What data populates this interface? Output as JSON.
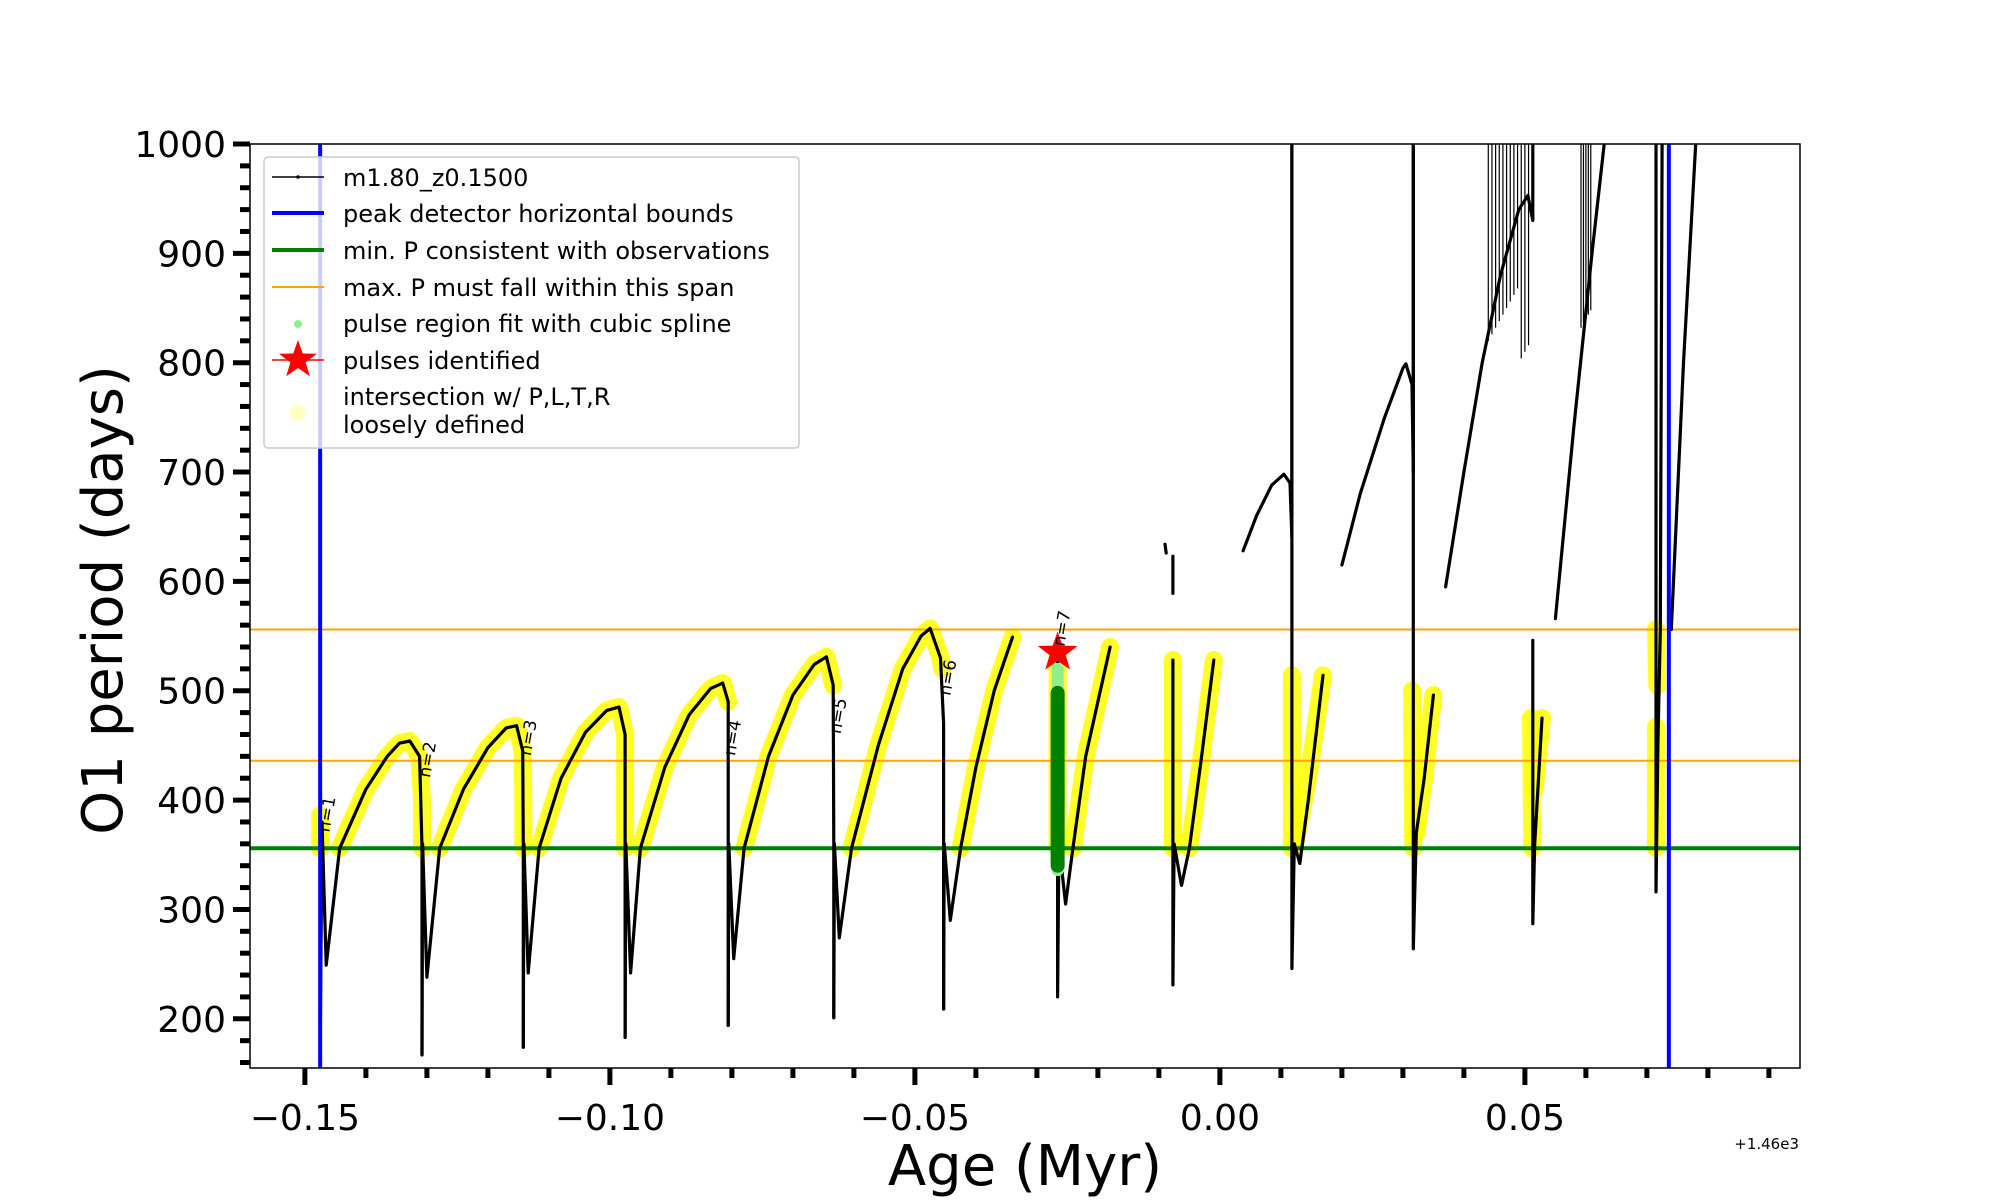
{
  "chart_data": {
    "type": "line",
    "xlabel": "Age (Myr)",
    "ylabel": "O1 period (days)",
    "x_offset_label": "+1.46e3",
    "xlim": [
      -0.159,
      0.0951
    ],
    "ylim": [
      155,
      1000
    ],
    "xticks": [
      -0.15,
      -0.1,
      -0.05,
      0.0,
      0.05
    ],
    "xtick_labels": [
      "−0.15",
      "−0.10",
      "−0.05",
      "0.00",
      "0.05"
    ],
    "x_minor_step": 0.01,
    "yticks": [
      200,
      300,
      400,
      500,
      600,
      700,
      800,
      900,
      1000
    ],
    "ytick_labels": [
      "200",
      "300",
      "400",
      "500",
      "600",
      "700",
      "800",
      "900",
      "1000"
    ],
    "y_minor_step": 20,
    "grid": false,
    "legend_position": "upper-left",
    "colors": {
      "track": "#000000",
      "bounds": "#0000ff",
      "min_p": "#008000",
      "max_p": "#ffa500",
      "spline": "#90ee90",
      "spline_dark": "#008000",
      "pulse_star": "#ff0000",
      "intersection": "#ffff00",
      "intersection_legend": "#ffffc0"
    },
    "legend": [
      {
        "label": "m1.80_z0.1500",
        "kind": "track"
      },
      {
        "label": "peak detector horizontal bounds",
        "kind": "bounds"
      },
      {
        "label": "min. P consistent with observations",
        "kind": "min_p"
      },
      {
        "label": "max. P must fall within this span",
        "kind": "max_p"
      },
      {
        "label": "pulse region fit with cubic spline",
        "kind": "spline"
      },
      {
        "label": "pulses identified",
        "kind": "star"
      },
      {
        "label": "intersection w/ P,L,T,R",
        "label2": "loosely defined",
        "kind": "intersection"
      }
    ],
    "vertical_lines": [
      -0.1475,
      0.0736
    ],
    "min_period_line": 356,
    "max_period_span": [
      436,
      556
    ],
    "track_series": [
      {
        "name": "pulse-1",
        "points": [
          [
            -0.1475,
            1000
          ],
          [
            -0.1475,
            164
          ],
          [
            -0.1472,
            380
          ],
          [
            -0.1465,
            249
          ],
          [
            -0.1443,
            356
          ],
          [
            -0.14,
            410
          ],
          [
            -0.1365,
            440
          ],
          [
            -0.1345,
            452
          ],
          [
            -0.1328,
            454
          ],
          [
            -0.1312,
            440
          ],
          [
            -0.1308,
            356
          ],
          [
            -0.1308,
            167
          ]
        ]
      },
      {
        "name": "pulse-2",
        "points": [
          [
            -0.1308,
            167
          ],
          [
            -0.1307,
            360
          ],
          [
            -0.13,
            238
          ],
          [
            -0.1279,
            356
          ],
          [
            -0.124,
            410
          ],
          [
            -0.12,
            448
          ],
          [
            -0.117,
            466
          ],
          [
            -0.1153,
            468
          ],
          [
            -0.1143,
            445
          ],
          [
            -0.1142,
            356
          ],
          [
            -0.1142,
            174
          ]
        ]
      },
      {
        "name": "pulse-3",
        "points": [
          [
            -0.1142,
            174
          ],
          [
            -0.1141,
            360
          ],
          [
            -0.1134,
            242
          ],
          [
            -0.1116,
            356
          ],
          [
            -0.108,
            420
          ],
          [
            -0.104,
            462
          ],
          [
            -0.1005,
            482
          ],
          [
            -0.0985,
            485
          ],
          [
            -0.0975,
            460
          ],
          [
            -0.0975,
            356
          ],
          [
            -0.0975,
            183
          ]
        ]
      },
      {
        "name": "pulse-4",
        "points": [
          [
            -0.0975,
            183
          ],
          [
            -0.0974,
            360
          ],
          [
            -0.0966,
            242
          ],
          [
            -0.095,
            356
          ],
          [
            -0.091,
            430
          ],
          [
            -0.087,
            478
          ],
          [
            -0.0835,
            502
          ],
          [
            -0.0815,
            507
          ],
          [
            -0.0806,
            490
          ],
          [
            -0.0806,
            356
          ],
          [
            -0.0806,
            194
          ]
        ]
      },
      {
        "name": "pulse-5",
        "points": [
          [
            -0.0806,
            194
          ],
          [
            -0.0805,
            360
          ],
          [
            -0.0797,
            255
          ],
          [
            -0.078,
            356
          ],
          [
            -0.074,
            440
          ],
          [
            -0.07,
            496
          ],
          [
            -0.0665,
            524
          ],
          [
            -0.0645,
            531
          ],
          [
            -0.0634,
            505
          ],
          [
            -0.0633,
            356
          ],
          [
            -0.0633,
            201
          ]
        ]
      },
      {
        "name": "pulse-6",
        "points": [
          [
            -0.0633,
            201
          ],
          [
            -0.0632,
            360
          ],
          [
            -0.0624,
            274
          ],
          [
            -0.0604,
            356
          ],
          [
            -0.056,
            450
          ],
          [
            -0.052,
            520
          ],
          [
            -0.049,
            550
          ],
          [
            -0.0475,
            557
          ],
          [
            -0.0458,
            530
          ],
          [
            -0.0453,
            470
          ],
          [
            -0.0453,
            209
          ]
        ]
      },
      {
        "name": "pulse-7",
        "points": [
          [
            -0.0453,
            209
          ],
          [
            -0.0452,
            360
          ],
          [
            -0.0442,
            290
          ],
          [
            -0.0425,
            356
          ],
          [
            -0.04,
            430
          ],
          [
            -0.037,
            500
          ],
          [
            -0.034,
            549
          ]
        ]
      },
      {
        "name": "pulse-8",
        "points": [
          [
            -0.0266,
            535
          ],
          [
            -0.0266,
            220
          ],
          [
            -0.0264,
            360
          ],
          [
            -0.0253,
            305
          ],
          [
            -0.0241,
            356
          ],
          [
            -0.022,
            440
          ],
          [
            -0.018,
            540
          ]
        ]
      },
      {
        "name": "pulse-9",
        "points": [
          [
            -0.009,
            634
          ],
          [
            -0.0088,
            626
          ]
        ]
      },
      {
        "name": "pulse-9b",
        "points": [
          [
            -0.0077,
            623
          ],
          [
            -0.0077,
            589
          ]
        ]
      },
      {
        "name": "pulse-10",
        "points": [
          [
            -0.0077,
            528
          ],
          [
            -0.0077,
            231
          ],
          [
            -0.0075,
            360
          ],
          [
            -0.0063,
            322
          ],
          [
            -0.005,
            356
          ],
          [
            -0.003,
            440
          ],
          [
            -0.001,
            528
          ]
        ]
      },
      {
        "name": "pulse-11",
        "points": [
          [
            0.0038,
            628
          ],
          [
            0.006,
            660
          ],
          [
            0.0085,
            688
          ],
          [
            0.0105,
            698
          ],
          [
            0.0115,
            690
          ],
          [
            0.0118,
            640
          ],
          [
            0.0118,
            1000
          ]
        ]
      },
      {
        "name": "pulse-11b",
        "points": [
          [
            0.0118,
            1000
          ],
          [
            0.0118,
            246
          ],
          [
            0.0122,
            360
          ],
          [
            0.0131,
            342
          ],
          [
            0.0145,
            400
          ],
          [
            0.0169,
            514
          ]
        ]
      },
      {
        "name": "pulse-12",
        "points": [
          [
            0.02,
            615
          ],
          [
            0.023,
            680
          ],
          [
            0.027,
            750
          ],
          [
            0.03,
            795
          ],
          [
            0.0305,
            799
          ],
          [
            0.0315,
            780
          ],
          [
            0.0317,
            700
          ],
          [
            0.0317,
            1000
          ]
        ]
      },
      {
        "name": "pulse-12b",
        "points": [
          [
            0.0317,
            1000
          ],
          [
            0.0317,
            264
          ],
          [
            0.0322,
            370
          ],
          [
            0.0335,
            420
          ],
          [
            0.035,
            496
          ]
        ]
      },
      {
        "name": "pulse-13",
        "points": [
          [
            0.037,
            595
          ],
          [
            0.04,
            700
          ],
          [
            0.043,
            800
          ],
          [
            0.046,
            880
          ],
          [
            0.049,
            940
          ],
          [
            0.0505,
            953
          ],
          [
            0.0513,
            930
          ],
          [
            0.0513,
            1000
          ]
        ]
      },
      {
        "name": "pulse-13b",
        "points": [
          [
            0.0513,
            546
          ],
          [
            0.0513,
            287
          ],
          [
            0.0516,
            360
          ],
          [
            0.0528,
            475
          ]
        ]
      },
      {
        "name": "pulse-14",
        "points": [
          [
            0.055,
            566
          ],
          [
            0.058,
            740
          ],
          [
            0.061,
            900
          ],
          [
            0.063,
            1000
          ]
        ]
      },
      {
        "name": "pulse-15",
        "points": [
          [
            0.0715,
            1000
          ],
          [
            0.0715,
            316
          ],
          [
            0.0718,
            450
          ],
          [
            0.0722,
            556
          ],
          [
            0.0725,
            1000
          ]
        ]
      },
      {
        "name": "pulse-16",
        "points": [
          [
            0.074,
            556
          ],
          [
            0.076,
            800
          ],
          [
            0.078,
            1000
          ]
        ]
      }
    ],
    "outburst_lines": [
      0.044,
      0.0446,
      0.0452,
      0.0458,
      0.0464,
      0.047,
      0.0476,
      0.0482,
      0.0488,
      0.0494,
      0.05,
      0.0506,
      0.0592,
      0.0596,
      0.06,
      0.0604,
      0.0608
    ],
    "intersection_regions": [
      {
        "points": [
          [
            -0.1475,
            386
          ],
          [
            -0.1475,
            356
          ]
        ]
      },
      {
        "points": [
          [
            -0.1443,
            356
          ],
          [
            -0.14,
            410
          ],
          [
            -0.1365,
            440
          ],
          [
            -0.1345,
            452
          ],
          [
            -0.1328,
            454
          ],
          [
            -0.1312,
            440
          ],
          [
            -0.1308,
            400
          ],
          [
            -0.1308,
            356
          ]
        ]
      },
      {
        "points": [
          [
            -0.1279,
            356
          ],
          [
            -0.124,
            410
          ],
          [
            -0.12,
            448
          ],
          [
            -0.117,
            466
          ],
          [
            -0.1153,
            468
          ],
          [
            -0.1143,
            445
          ],
          [
            -0.1142,
            400
          ],
          [
            -0.1142,
            356
          ]
        ]
      },
      {
        "points": [
          [
            -0.1116,
            356
          ],
          [
            -0.108,
            420
          ],
          [
            -0.104,
            462
          ],
          [
            -0.1005,
            482
          ],
          [
            -0.0985,
            485
          ],
          [
            -0.0975,
            460
          ],
          [
            -0.0975,
            356
          ]
        ]
      },
      {
        "points": [
          [
            -0.095,
            356
          ],
          [
            -0.091,
            430
          ],
          [
            -0.087,
            478
          ],
          [
            -0.0835,
            502
          ],
          [
            -0.0815,
            507
          ],
          [
            -0.0806,
            490
          ]
        ]
      },
      {
        "points": [
          [
            -0.078,
            356
          ],
          [
            -0.074,
            440
          ],
          [
            -0.07,
            496
          ],
          [
            -0.0665,
            524
          ],
          [
            -0.0645,
            531
          ],
          [
            -0.0634,
            505
          ]
        ]
      },
      {
        "points": [
          [
            -0.0604,
            356
          ],
          [
            -0.056,
            450
          ],
          [
            -0.052,
            520
          ],
          [
            -0.049,
            550
          ],
          [
            -0.0475,
            557
          ],
          [
            -0.0458,
            530
          ],
          [
            -0.0455,
            520
          ]
        ]
      },
      {
        "points": [
          [
            -0.0425,
            356
          ],
          [
            -0.04,
            430
          ],
          [
            -0.037,
            500
          ],
          [
            -0.034,
            549
          ]
        ]
      },
      {
        "points": [
          [
            -0.0266,
            535
          ],
          [
            -0.0266,
            356
          ]
        ]
      },
      {
        "points": [
          [
            -0.0241,
            356
          ],
          [
            -0.022,
            440
          ],
          [
            -0.018,
            540
          ]
        ]
      },
      {
        "points": [
          [
            -0.0077,
            528
          ],
          [
            -0.0077,
            356
          ]
        ]
      },
      {
        "points": [
          [
            -0.005,
            356
          ],
          [
            -0.003,
            440
          ],
          [
            -0.001,
            528
          ]
        ]
      },
      {
        "points": [
          [
            0.0118,
            514
          ],
          [
            0.0118,
            356
          ]
        ]
      },
      {
        "points": [
          [
            0.0122,
            356
          ],
          [
            0.0145,
            420
          ],
          [
            0.0169,
            514
          ]
        ]
      },
      {
        "points": [
          [
            0.0315,
            500
          ],
          [
            0.0317,
            356
          ]
        ]
      },
      {
        "points": [
          [
            0.0322,
            370
          ],
          [
            0.0335,
            420
          ],
          [
            0.035,
            496
          ]
        ]
      },
      {
        "points": [
          [
            0.051,
            475
          ],
          [
            0.0512,
            356
          ]
        ]
      },
      {
        "points": [
          [
            0.0516,
            410
          ],
          [
            0.0528,
            475
          ]
        ]
      },
      {
        "points": [
          [
            0.0715,
            556
          ],
          [
            0.0717,
            505
          ]
        ]
      },
      {
        "points": [
          [
            0.0715,
            467
          ],
          [
            0.0715,
            356
          ]
        ]
      }
    ],
    "spline_region": {
      "age": -0.0266,
      "p_top": 498,
      "p_bottom": 340,
      "light_top": 520,
      "light_bottom": 336
    },
    "pulses_identified": [
      {
        "age": -0.0266,
        "period": 535
      }
    ],
    "pulse_labels": [
      {
        "text": "n=1",
        "age": -0.146,
        "period": 370
      },
      {
        "text": "n=2",
        "age": -0.1295,
        "period": 420
      },
      {
        "text": "n=3",
        "age": -0.113,
        "period": 440
      },
      {
        "text": "n=4",
        "age": -0.0795,
        "period": 440
      },
      {
        "text": "n=5",
        "age": -0.0622,
        "period": 460
      },
      {
        "text": "n=6",
        "age": -0.0442,
        "period": 495
      },
      {
        "text": "n=7",
        "age": -0.0255,
        "period": 540
      }
    ]
  }
}
